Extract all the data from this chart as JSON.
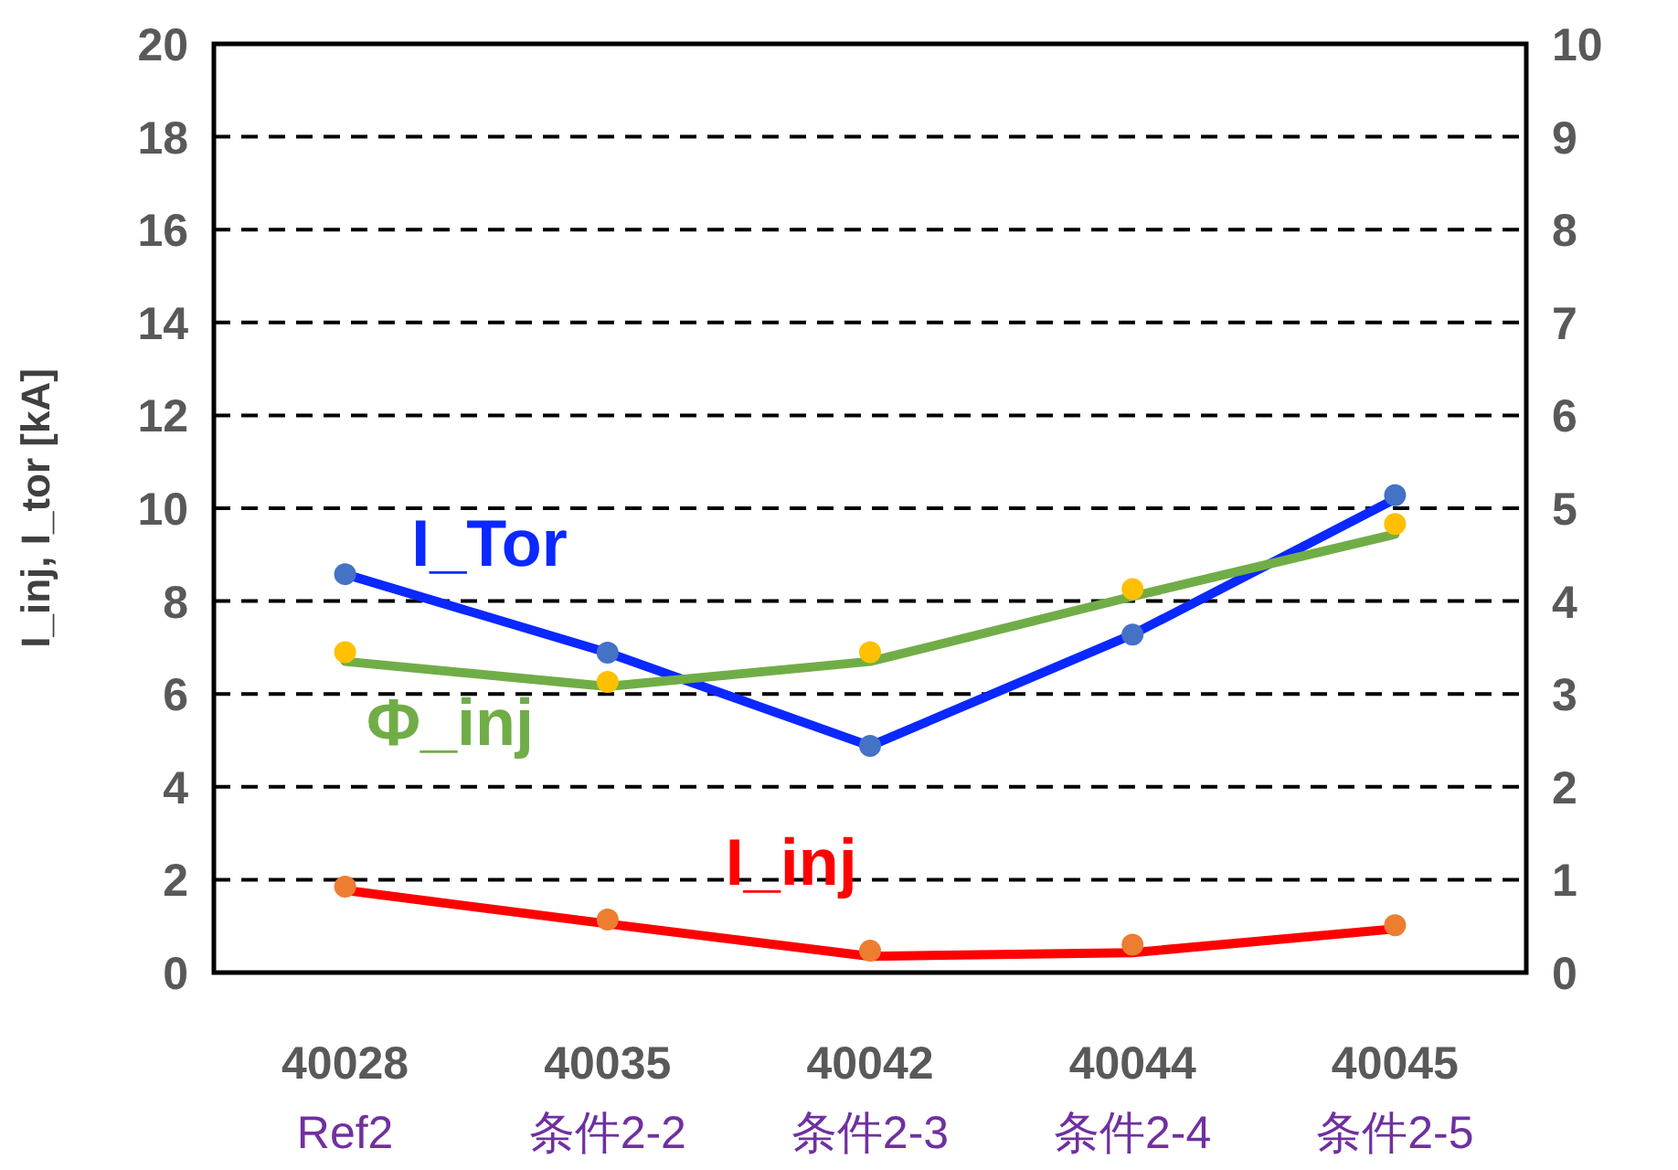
{
  "chart_data": {
    "type": "line",
    "ylabel": "I_inj, I_tor [kA]",
    "categories": [
      "40028\nRef2",
      "40035\n条件2-2",
      "40042\n条件2-3",
      "40044\n条件2-4",
      "40045\n条件2-5"
    ],
    "series": [
      {
        "name": "I_Tor",
        "marker": "none",
        "color": "#0a28ff",
        "values": [
          8.58,
          6.89,
          4.88,
          7.28,
          10.2
        ]
      },
      {
        "type": "scatter",
        "color": "#4472c4",
        "values": [
          8.58,
          6.89,
          4.88,
          7.28,
          10.28
        ]
      },
      {
        "name": "Φ_inj",
        "marker": "none",
        "axis": "y2",
        "color": "#70ad47",
        "values": [
          3.35,
          3.08,
          3.35,
          4.05,
          4.72
        ]
      },
      {
        "type": "scatter",
        "axis": "y2",
        "color": "#ffc000",
        "values": [
          3.45,
          3.13,
          3.45,
          4.13,
          4.83
        ]
      },
      {
        "name": "I_inj",
        "marker": "none",
        "color": "#ff0000",
        "values": [
          1.77,
          1.05,
          0.35,
          0.43,
          0.94
        ]
      },
      {
        "type": "scatter",
        "color": "#ed7d31",
        "values": [
          1.85,
          1.14,
          0.47,
          0.6,
          1.02
        ]
      }
    ],
    "ylim": [
      0,
      20
    ],
    "yticks": [
      0,
      2,
      4,
      6,
      8,
      10,
      12,
      14,
      16,
      18,
      20
    ],
    "y2lim": [
      0,
      10
    ],
    "y2ticks": [
      0,
      1,
      2,
      3,
      4,
      5,
      6,
      7,
      8,
      9,
      10
    ],
    "grid": "y",
    "marker": "circle",
    "line_style": "solid"
  }
}
